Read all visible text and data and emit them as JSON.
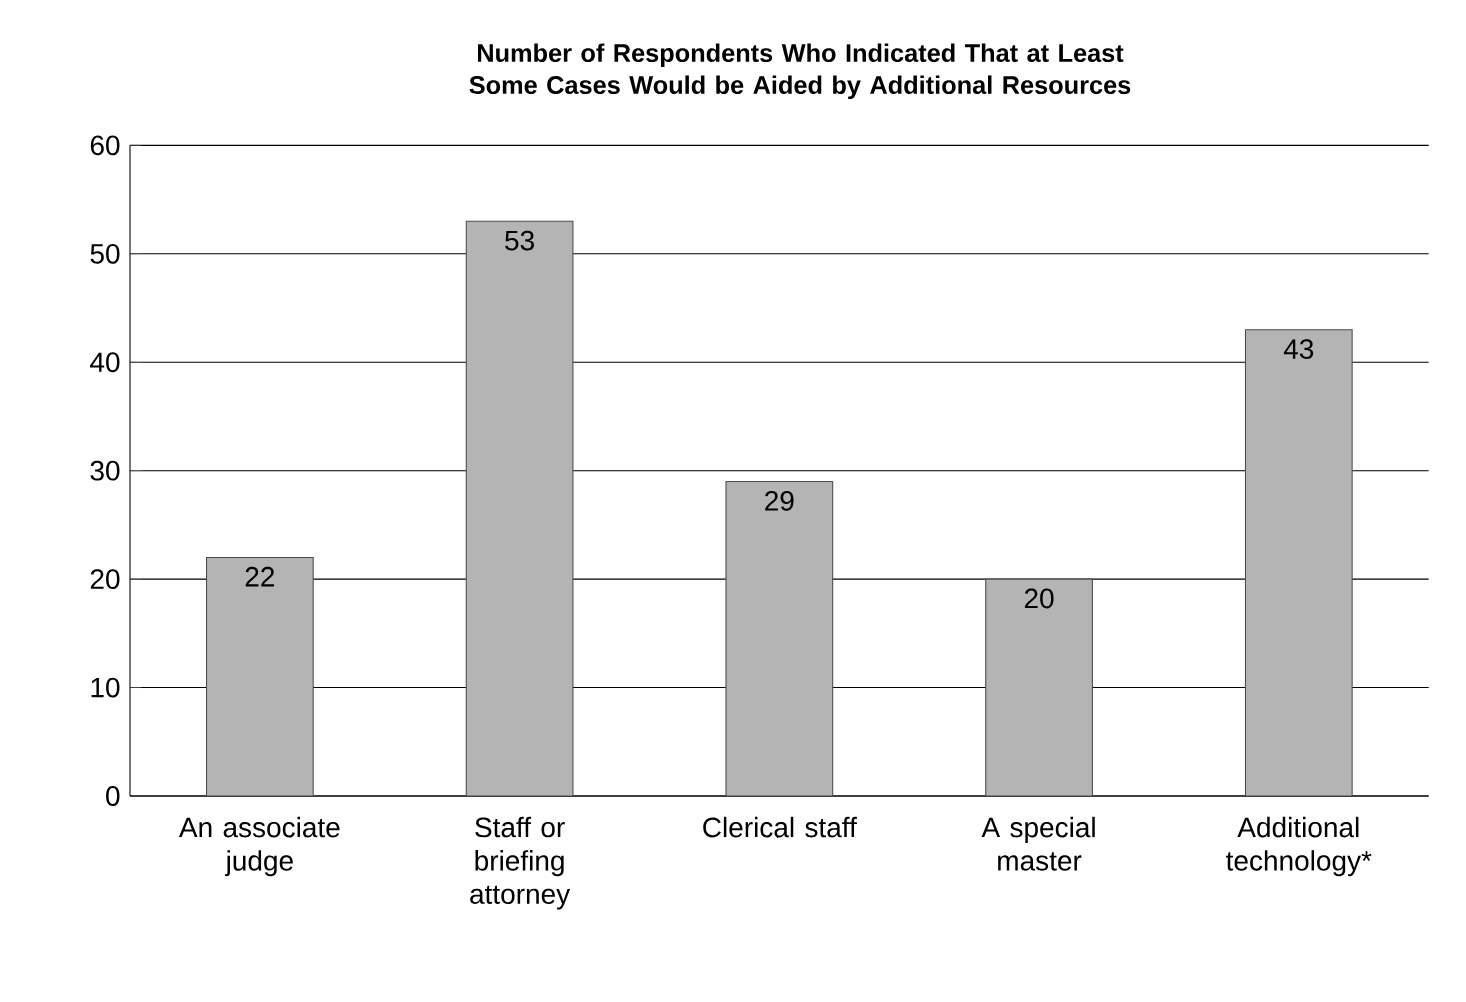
{
  "chart_data": {
    "type": "bar",
    "title": "Number of Respondents Who Indicated That at Least Some Cases Would be Aided by Additional Resources",
    "categories": [
      "An associate judge",
      "Staff or briefing attorney",
      "Clerical staff",
      "A special master",
      "Additional technology*"
    ],
    "values": [
      22,
      53,
      29,
      20,
      43
    ],
    "color": "#b4b4b4",
    "ylim": [
      0,
      60
    ],
    "yticks": [
      0,
      10,
      20,
      30,
      40,
      50,
      60
    ],
    "grid": "y",
    "data_labels": true
  }
}
